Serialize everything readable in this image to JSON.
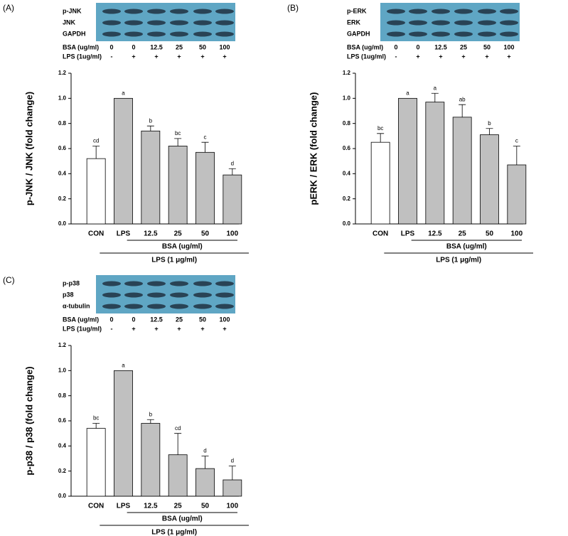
{
  "chart_data": [
    {
      "type": "bar",
      "panel": "(A)",
      "blot": {
        "labels": [
          "p-JNK",
          "JNK",
          "GAPDH"
        ],
        "rows": [
          {
            "label": "BSA (ug/ml)",
            "lanes": [
              "0",
              "0",
              "12.5",
              "25",
              "50",
              "100"
            ]
          },
          {
            "label": "LPS (1ug/ml)",
            "lanes": [
              "-",
              "+",
              "+",
              "+",
              "+",
              "+"
            ]
          }
        ]
      },
      "y_label": "p-JNK / JNK (fold change)",
      "categories": [
        "CON",
        "LPS",
        "12.5",
        "25",
        "50",
        "100"
      ],
      "values": [
        0.52,
        1.0,
        0.74,
        0.62,
        0.57,
        0.39
      ],
      "errors": [
        0.1,
        0,
        0.04,
        0.06,
        0.08,
        0.05
      ],
      "significance": [
        "cd",
        "a",
        "b",
        "bc",
        "c",
        "d"
      ],
      "colors": [
        "#ffffff",
        "#c0c0c0",
        "#c0c0c0",
        "#c0c0c0",
        "#c0c0c0",
        "#c0c0c0"
      ],
      "bsa_label": "BSA (ug/ml)",
      "lps_label": "LPS (1 μg/ml)",
      "ylim": [
        0,
        1.2
      ],
      "yticks": [
        {
          "value": 0,
          "label": "0.0"
        },
        {
          "value": 0.2,
          "label": "0.2"
        },
        {
          "value": 0.4,
          "label": "0.4"
        },
        {
          "value": 0.6,
          "label": "0.6"
        },
        {
          "value": 0.8,
          "label": "0.8"
        },
        {
          "value": 1.0,
          "label": "1.0"
        },
        {
          "value": 1.2,
          "label": "1.2"
        }
      ]
    },
    {
      "type": "bar",
      "panel": "(B)",
      "blot": {
        "labels": [
          "p-ERK",
          "ERK",
          "GAPDH"
        ],
        "rows": [
          {
            "label": "BSA (ug/ml)",
            "lanes": [
              "0",
              "0",
              "12.5",
              "25",
              "50",
              "100"
            ]
          },
          {
            "label": "LPS (1ug/ml)",
            "lanes": [
              "-",
              "+",
              "+",
              "+",
              "+",
              "+"
            ]
          }
        ]
      },
      "y_label": "pERK / ERK (fold change)",
      "categories": [
        "CON",
        "LPS",
        "12.5",
        "25",
        "50",
        "100"
      ],
      "values": [
        0.65,
        1.0,
        0.97,
        0.85,
        0.71,
        0.47
      ],
      "errors": [
        0.07,
        0,
        0.07,
        0.1,
        0.05,
        0.15
      ],
      "significance": [
        "bc",
        "a",
        "a",
        "ab",
        "b",
        "c"
      ],
      "colors": [
        "#ffffff",
        "#c0c0c0",
        "#c0c0c0",
        "#c0c0c0",
        "#c0c0c0",
        "#c0c0c0"
      ],
      "bsa_label": "BSA (ug/ml)",
      "lps_label": "LPS (1 μg/ml)",
      "ylim": [
        0,
        1.2
      ],
      "yticks": [
        {
          "value": 0,
          "label": "0.0"
        },
        {
          "value": 0.2,
          "label": "0.2"
        },
        {
          "value": 0.4,
          "label": "0.4"
        },
        {
          "value": 0.6,
          "label": "0.6"
        },
        {
          "value": 0.8,
          "label": "0.8"
        },
        {
          "value": 1.0,
          "label": "1.0"
        },
        {
          "value": 1.2,
          "label": "1.2"
        }
      ]
    },
    {
      "type": "bar",
      "panel": "(C)",
      "blot": {
        "labels": [
          "p-p38",
          "p38",
          "α-tubulin"
        ],
        "rows": [
          {
            "label": "BSA (ug/ml)",
            "lanes": [
              "0",
              "0",
              "12.5",
              "25",
              "50",
              "100"
            ]
          },
          {
            "label": "LPS (1ug/ml)",
            "lanes": [
              "-",
              "+",
              "+",
              "+",
              "+",
              "+"
            ]
          }
        ]
      },
      "y_label": "p-p38 / p38 (fold change)",
      "categories": [
        "CON",
        "LPS",
        "12.5",
        "25",
        "50",
        "100"
      ],
      "values": [
        0.54,
        1.0,
        0.58,
        0.33,
        0.22,
        0.13
      ],
      "errors": [
        0.04,
        0,
        0.03,
        0.17,
        0.1,
        0.11
      ],
      "significance": [
        "bc",
        "a",
        "b",
        "cd",
        "d",
        "d"
      ],
      "colors": [
        "#ffffff",
        "#c0c0c0",
        "#c0c0c0",
        "#c0c0c0",
        "#c0c0c0",
        "#c0c0c0"
      ],
      "bsa_label": "BSA (ug/ml)",
      "lps_label": "LPS (1 μg/ml)",
      "ylim": [
        0,
        1.2
      ],
      "yticks": [
        {
          "value": 0,
          "label": "0.0"
        },
        {
          "value": 0.2,
          "label": "0.2"
        },
        {
          "value": 0.4,
          "label": "0.4"
        },
        {
          "value": 0.6,
          "label": "0.6"
        },
        {
          "value": 0.8,
          "label": "0.8"
        },
        {
          "value": 1.0,
          "label": "1.0"
        },
        {
          "value": 1.2,
          "label": "1.2"
        }
      ]
    }
  ]
}
